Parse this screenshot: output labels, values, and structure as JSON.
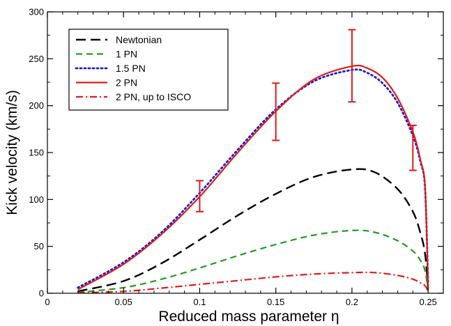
{
  "chart_data": {
    "type": "line",
    "xlabel": "Reduced mass parameter η",
    "ylabel": "Kick velocity (km/s)",
    "xlim": [
      0,
      0.26
    ],
    "ylim": [
      0,
      300
    ],
    "xticks": [
      0,
      0.05,
      0.1,
      0.15,
      0.2,
      0.25
    ],
    "xtick_labels": [
      "0",
      "0.05",
      "0.1",
      "0.15",
      "0.2",
      "0.25"
    ],
    "yticks": [
      0,
      50,
      100,
      150,
      200,
      250,
      300
    ],
    "ytick_labels": [
      "0",
      "50",
      "100",
      "150",
      "200",
      "250",
      "300"
    ],
    "grid": false,
    "legend_position": "top-left",
    "series": [
      {
        "name": "Newtonian",
        "color": "#000000",
        "dash": "long-dash",
        "points": [
          [
            0.02,
            2
          ],
          [
            0.05,
            13
          ],
          [
            0.075,
            32
          ],
          [
            0.1,
            57
          ],
          [
            0.125,
            83
          ],
          [
            0.15,
            106
          ],
          [
            0.175,
            124
          ],
          [
            0.2,
            132
          ],
          [
            0.215,
            129
          ],
          [
            0.23,
            111
          ],
          [
            0.24,
            87
          ],
          [
            0.245,
            64
          ],
          [
            0.248,
            42
          ],
          [
            0.25,
            5
          ]
        ]
      },
      {
        "name": "1 PN",
        "color": "#229922",
        "dash": "dash",
        "points": [
          [
            0.02,
            1
          ],
          [
            0.05,
            6
          ],
          [
            0.075,
            15
          ],
          [
            0.1,
            27
          ],
          [
            0.125,
            40
          ],
          [
            0.15,
            52
          ],
          [
            0.175,
            62
          ],
          [
            0.2,
            67
          ],
          [
            0.215,
            65
          ],
          [
            0.23,
            56
          ],
          [
            0.24,
            45
          ],
          [
            0.245,
            35
          ],
          [
            0.248,
            24
          ],
          [
            0.25,
            3
          ]
        ]
      },
      {
        "name": "1.5 PN",
        "color": "#1c1ccc",
        "dash": "dot",
        "points": [
          [
            0.02,
            6
          ],
          [
            0.05,
            33
          ],
          [
            0.075,
            65
          ],
          [
            0.1,
            107
          ],
          [
            0.125,
            153
          ],
          [
            0.15,
            196
          ],
          [
            0.175,
            226
          ],
          [
            0.2,
            238
          ],
          [
            0.21,
            235
          ],
          [
            0.22,
            224
          ],
          [
            0.23,
            203
          ],
          [
            0.24,
            168
          ],
          [
            0.245,
            140
          ],
          [
            0.248,
            112
          ],
          [
            0.25,
            10
          ]
        ]
      },
      {
        "name": "2 PN",
        "color": "#dd1c1c",
        "dash": "solid",
        "points": [
          [
            0.02,
            4
          ],
          [
            0.05,
            31
          ],
          [
            0.075,
            63
          ],
          [
            0.1,
            103
          ],
          [
            0.125,
            150
          ],
          [
            0.15,
            194
          ],
          [
            0.175,
            228
          ],
          [
            0.2,
            242
          ],
          [
            0.21,
            240
          ],
          [
            0.22,
            230
          ],
          [
            0.23,
            208
          ],
          [
            0.24,
            172
          ],
          [
            0.245,
            142
          ],
          [
            0.248,
            113
          ],
          [
            0.25,
            8
          ]
        ]
      },
      {
        "name": "2 PN, up to ISCO",
        "color": "#dd1c1c",
        "dash": "dash-dot",
        "points": [
          [
            0.02,
            0.5
          ],
          [
            0.05,
            2
          ],
          [
            0.075,
            5.5
          ],
          [
            0.1,
            9.5
          ],
          [
            0.125,
            13.5
          ],
          [
            0.15,
            17.5
          ],
          [
            0.175,
            20.5
          ],
          [
            0.2,
            22
          ],
          [
            0.215,
            22
          ],
          [
            0.23,
            19
          ],
          [
            0.24,
            15
          ],
          [
            0.245,
            11
          ],
          [
            0.248,
            8
          ],
          [
            0.25,
            2
          ]
        ]
      }
    ],
    "error_bars": {
      "color": "#dd1c1c",
      "points": [
        {
          "x": 0.1,
          "low": 87,
          "high": 120
        },
        {
          "x": 0.15,
          "low": 163,
          "high": 224
        },
        {
          "x": 0.2,
          "low": 204,
          "high": 281
        },
        {
          "x": 0.24,
          "low": 131,
          "high": 179
        }
      ]
    }
  }
}
